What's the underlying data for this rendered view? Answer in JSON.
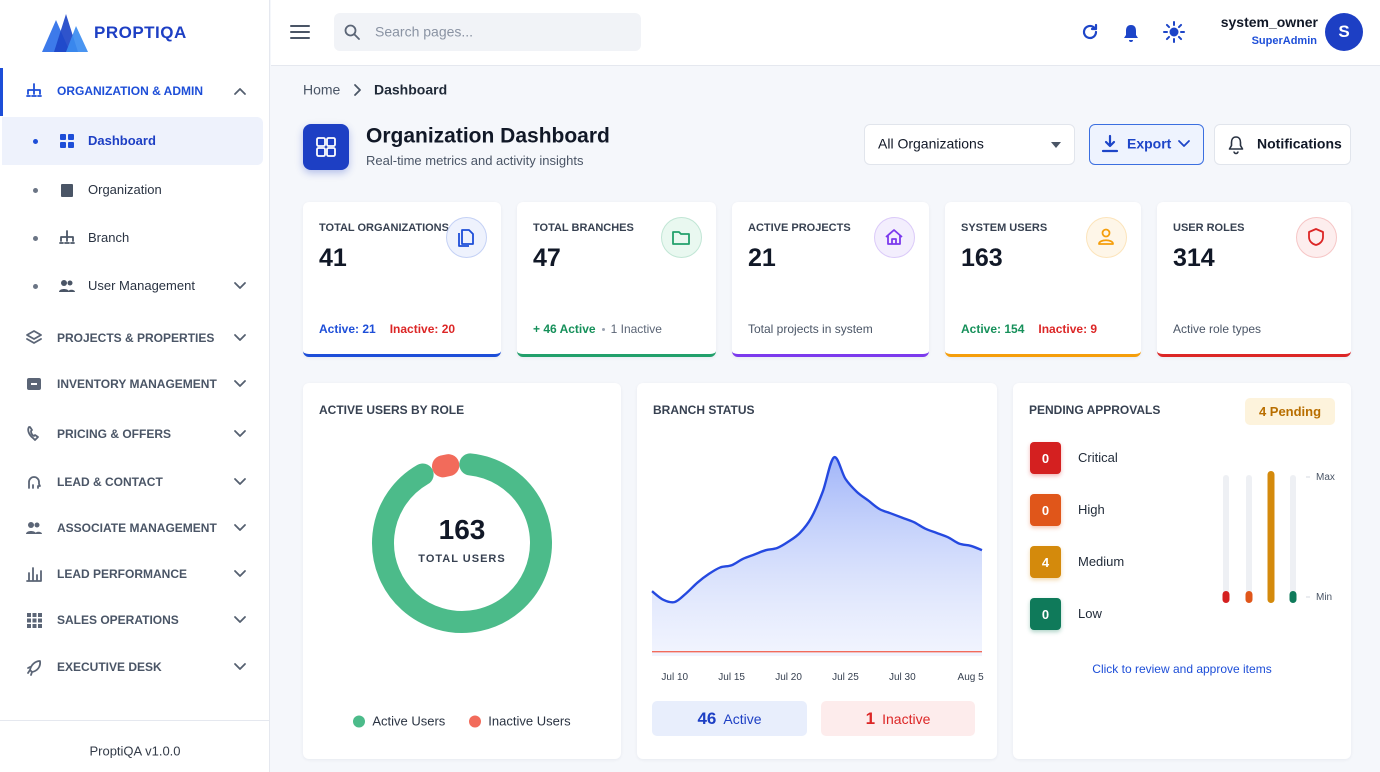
{
  "brand": "PROPTIQA",
  "sidebar": {
    "sections": [
      {
        "label": "ORGANIZATION & ADMIN",
        "items": [
          "Dashboard",
          "Organization",
          "Branch",
          "User Management"
        ]
      },
      {
        "label": "PROJECTS & PROPERTIES"
      },
      {
        "label": "INVENTORY MANAGEMENT"
      },
      {
        "label": "PRICING & OFFERS"
      },
      {
        "label": "LEAD & CONTACT"
      },
      {
        "label": "ASSOCIATE MANAGEMENT"
      },
      {
        "label": "LEAD PERFORMANCE"
      },
      {
        "label": "SALES OPERATIONS"
      },
      {
        "label": "EXECUTIVE DESK"
      }
    ],
    "version": "ProptiQA v1.0.0"
  },
  "topbar": {
    "search_placeholder": "Search pages...",
    "user": {
      "name": "system_owner",
      "role": "SuperAdmin",
      "initial": "S"
    }
  },
  "breadcrumb": [
    "Home",
    "Dashboard"
  ],
  "header": {
    "title": "Organization Dashboard",
    "subtitle": "Real-time metrics and activity insights",
    "filter": "All Organizations",
    "export": "Export",
    "notifications": "Notifications"
  },
  "stats": [
    {
      "label": "TOTAL ORGANIZATIONS",
      "value": 41,
      "details": [
        "Active: 21",
        "Inactive: 20"
      ]
    },
    {
      "label": "TOTAL BRANCHES",
      "value": 47,
      "details": [
        "+ 46 Active",
        "1 Inactive"
      ]
    },
    {
      "label": "ACTIVE PROJECTS",
      "value": 21,
      "details": [
        "Total projects in system"
      ]
    },
    {
      "label": "SYSTEM USERS",
      "value": 163,
      "details": [
        "Active: 154",
        "Inactive: 9"
      ]
    },
    {
      "label": "USER ROLES",
      "value": 314,
      "details": [
        "Active role types"
      ]
    }
  ],
  "chart_data": [
    {
      "type": "pie",
      "title": "ACTIVE USERS BY ROLE",
      "total": 163,
      "total_label": "TOTAL USERS",
      "categories": [
        "Active Users",
        "Inactive Users"
      ],
      "values": [
        154,
        9
      ],
      "colors": [
        "#4cbb8a",
        "#f26b5b"
      ]
    },
    {
      "type": "area",
      "title": "BRANCH STATUS",
      "categories": [
        null,
        null,
        "Jul 10",
        null,
        null,
        null,
        null,
        "Jul 15",
        null,
        null,
        null,
        null,
        "Jul 20",
        null,
        null,
        null,
        null,
        "Jul 25",
        null,
        null,
        null,
        null,
        "Jul 30",
        null,
        null,
        null,
        null,
        null,
        "Aug 5",
        null
      ],
      "ylim": [
        0,
        50
      ],
      "series": [
        {
          "name": "Active",
          "color": "#2549e0",
          "values": [
            15,
            13,
            12.5,
            14.5,
            17,
            19,
            20.5,
            21,
            22.5,
            23.5,
            24.5,
            25,
            26.5,
            28.5,
            32,
            38,
            46,
            41,
            38,
            36,
            34,
            33,
            32,
            31,
            29.5,
            28.5,
            27.5,
            26,
            25.5,
            24.5
          ]
        },
        {
          "name": "Inactive",
          "color": "#f26b5b",
          "values": [
            1,
            1,
            1,
            1,
            1,
            1,
            1,
            1,
            1,
            1,
            1,
            1,
            1,
            1,
            1,
            1,
            1,
            1,
            1,
            1,
            1,
            1,
            1,
            1,
            1,
            1,
            1,
            1,
            1,
            1
          ]
        }
      ],
      "totals": [
        46,
        1
      ]
    },
    {
      "type": "bar",
      "title": "PENDING APPROVALS",
      "badge": "4 Pending",
      "categories": [
        "Critical",
        "High",
        "Medium",
        "Low"
      ],
      "values": [
        0,
        0,
        4,
        0
      ],
      "colors": [
        "#d42020",
        "#e0561a",
        "#d48a0c",
        "#0f7a5a"
      ],
      "ylim": [
        0,
        4
      ],
      "yticks": [
        {
          "value": 0,
          "label": "Min"
        },
        {
          "value": 4,
          "label": "Max"
        }
      ],
      "footer": "Click to review and approve items"
    }
  ]
}
